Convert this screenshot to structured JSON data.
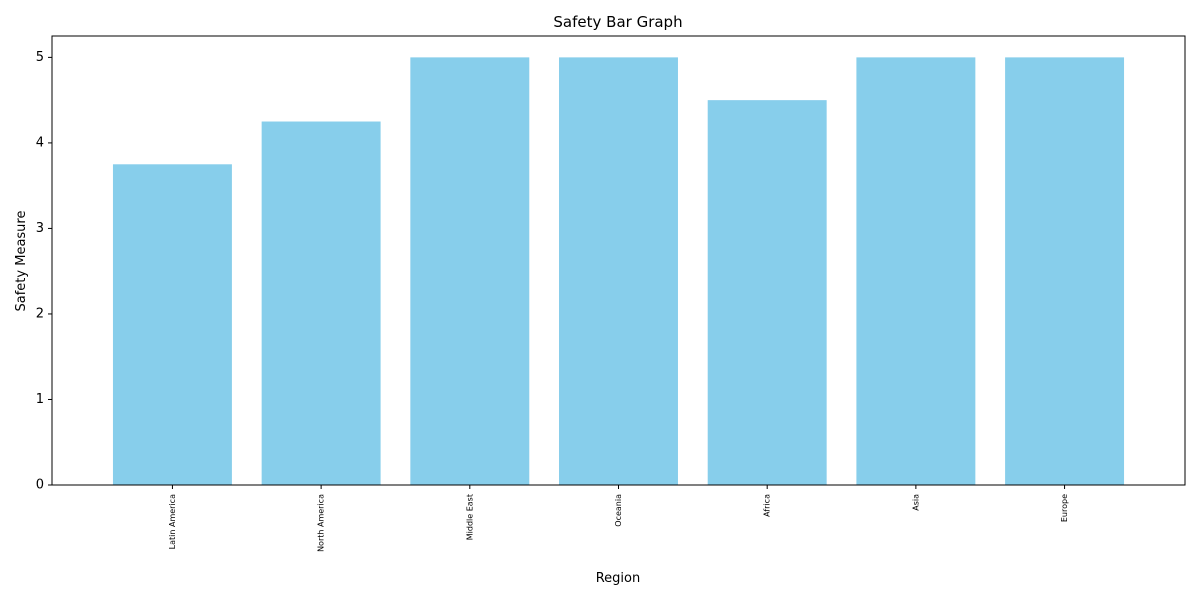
{
  "chart_data": {
    "type": "bar",
    "title": "Safety Bar Graph",
    "xlabel": "Region",
    "ylabel": "Safety Measure",
    "categories": [
      "Latin America",
      "North America",
      "Middle East",
      "Oceania",
      "Africa",
      "Asia",
      "Europe"
    ],
    "values": [
      3.75,
      4.25,
      5.0,
      5.0,
      4.5,
      5.0,
      5.0
    ],
    "ylim": [
      0,
      5.25
    ],
    "yticks": [
      0,
      1,
      2,
      3,
      4,
      5
    ],
    "x_tick_rotation": 90,
    "grid": false,
    "bar_color": "#87ceeb",
    "axis_color": "#000000"
  }
}
